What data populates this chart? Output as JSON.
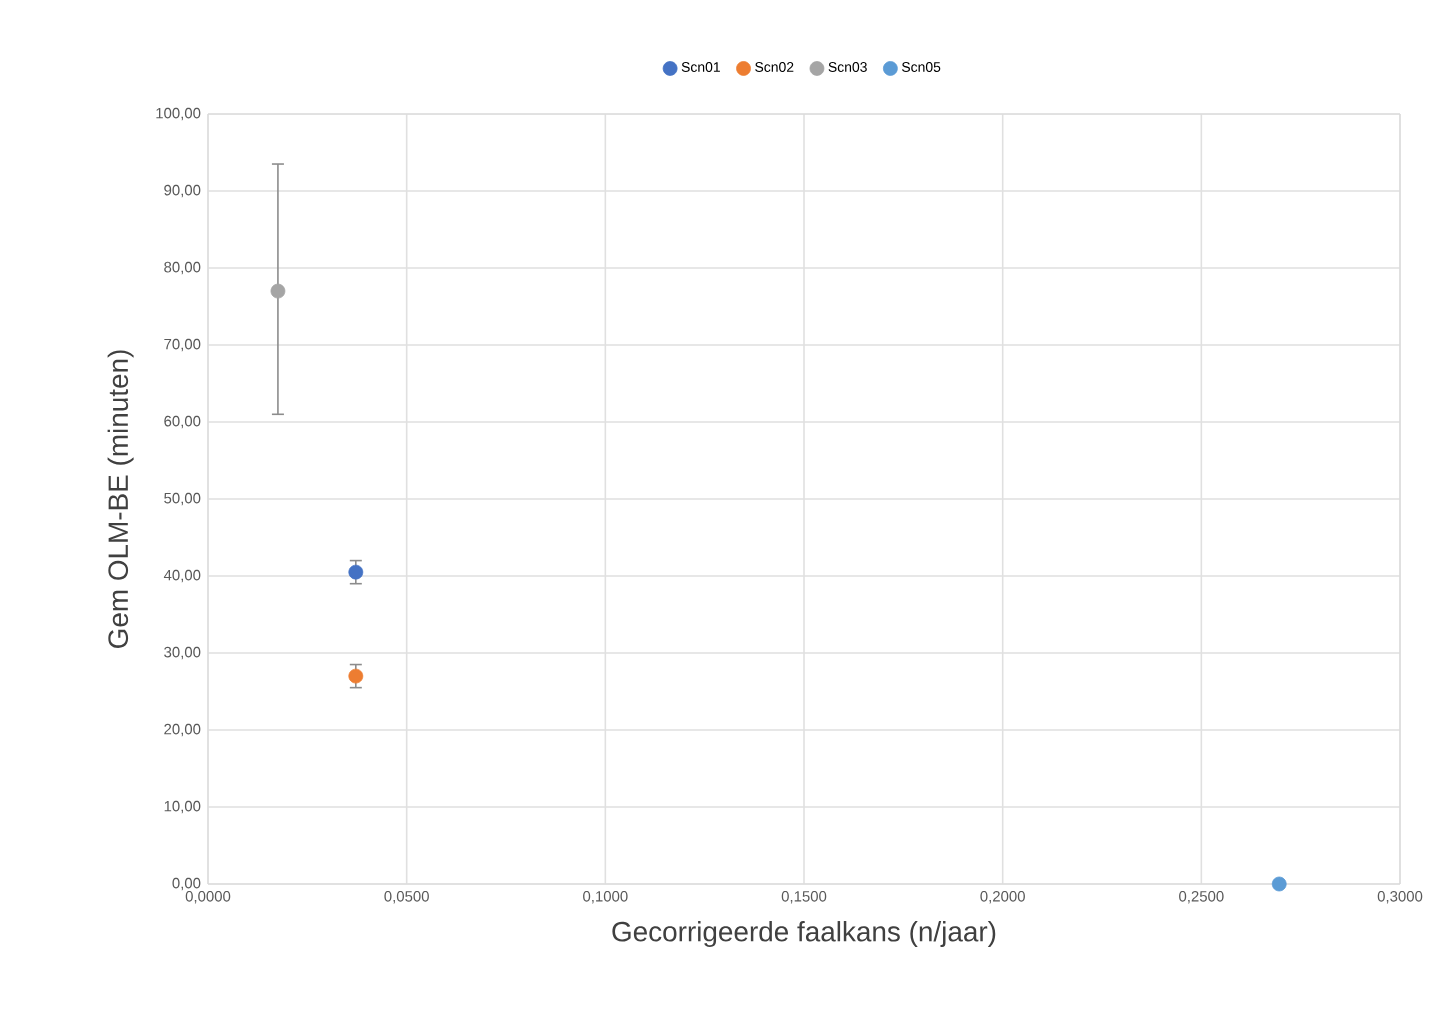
{
  "chart_data": {
    "type": "scatter",
    "xlabel": "Gecorrigeerde faalkans (n/jaar)",
    "ylabel": "Gem OLM-BE (minuten)",
    "series": [
      {
        "name": "Scn01",
        "color": "#4472c4",
        "x": [
          0.0372
        ],
        "values": [
          40.5
        ],
        "errors": [
          [
            39,
            42
          ]
        ]
      },
      {
        "name": "Scn02",
        "color": "#ed7d31",
        "x": [
          0.0372
        ],
        "values": [
          27
        ],
        "errors": [
          [
            25.5,
            28.5
          ]
        ]
      },
      {
        "name": "Scn03",
        "color": "#a5a5a5",
        "x": [
          0.0176
        ],
        "values": [
          77
        ],
        "errors": [
          [
            61,
            93.5
          ]
        ]
      },
      {
        "name": "Scn05",
        "color": "#5b9bd5",
        "x": [
          0.2696
        ],
        "values": [
          0
        ],
        "errors": [
          null
        ]
      }
    ],
    "xlim": [
      0,
      0.3
    ],
    "ylim": [
      0,
      100
    ],
    "xticks": [
      {
        "value": 0,
        "label": "0,0000"
      },
      {
        "value": 0.05,
        "label": "0,0500"
      },
      {
        "value": 0.1,
        "label": "0,1000"
      },
      {
        "value": 0.15,
        "label": "0,1500"
      },
      {
        "value": 0.2,
        "label": "0,2000"
      },
      {
        "value": 0.25,
        "label": "0,2500"
      },
      {
        "value": 0.3,
        "label": "0,3000"
      }
    ],
    "yticks": [
      {
        "value": 0,
        "label": "0,00"
      },
      {
        "value": 10,
        "label": "10,00"
      },
      {
        "value": 20,
        "label": "20,00"
      },
      {
        "value": 30,
        "label": "30,00"
      },
      {
        "value": 40,
        "label": "40,00"
      },
      {
        "value": 50,
        "label": "50,00"
      },
      {
        "value": 60,
        "label": "60,00"
      },
      {
        "value": 70,
        "label": "70,00"
      },
      {
        "value": 80,
        "label": "80,00"
      },
      {
        "value": 90,
        "label": "90,00"
      },
      {
        "value": 100,
        "label": "100,00"
      }
    ],
    "grid": true,
    "legend": "top",
    "marker": "circle"
  }
}
